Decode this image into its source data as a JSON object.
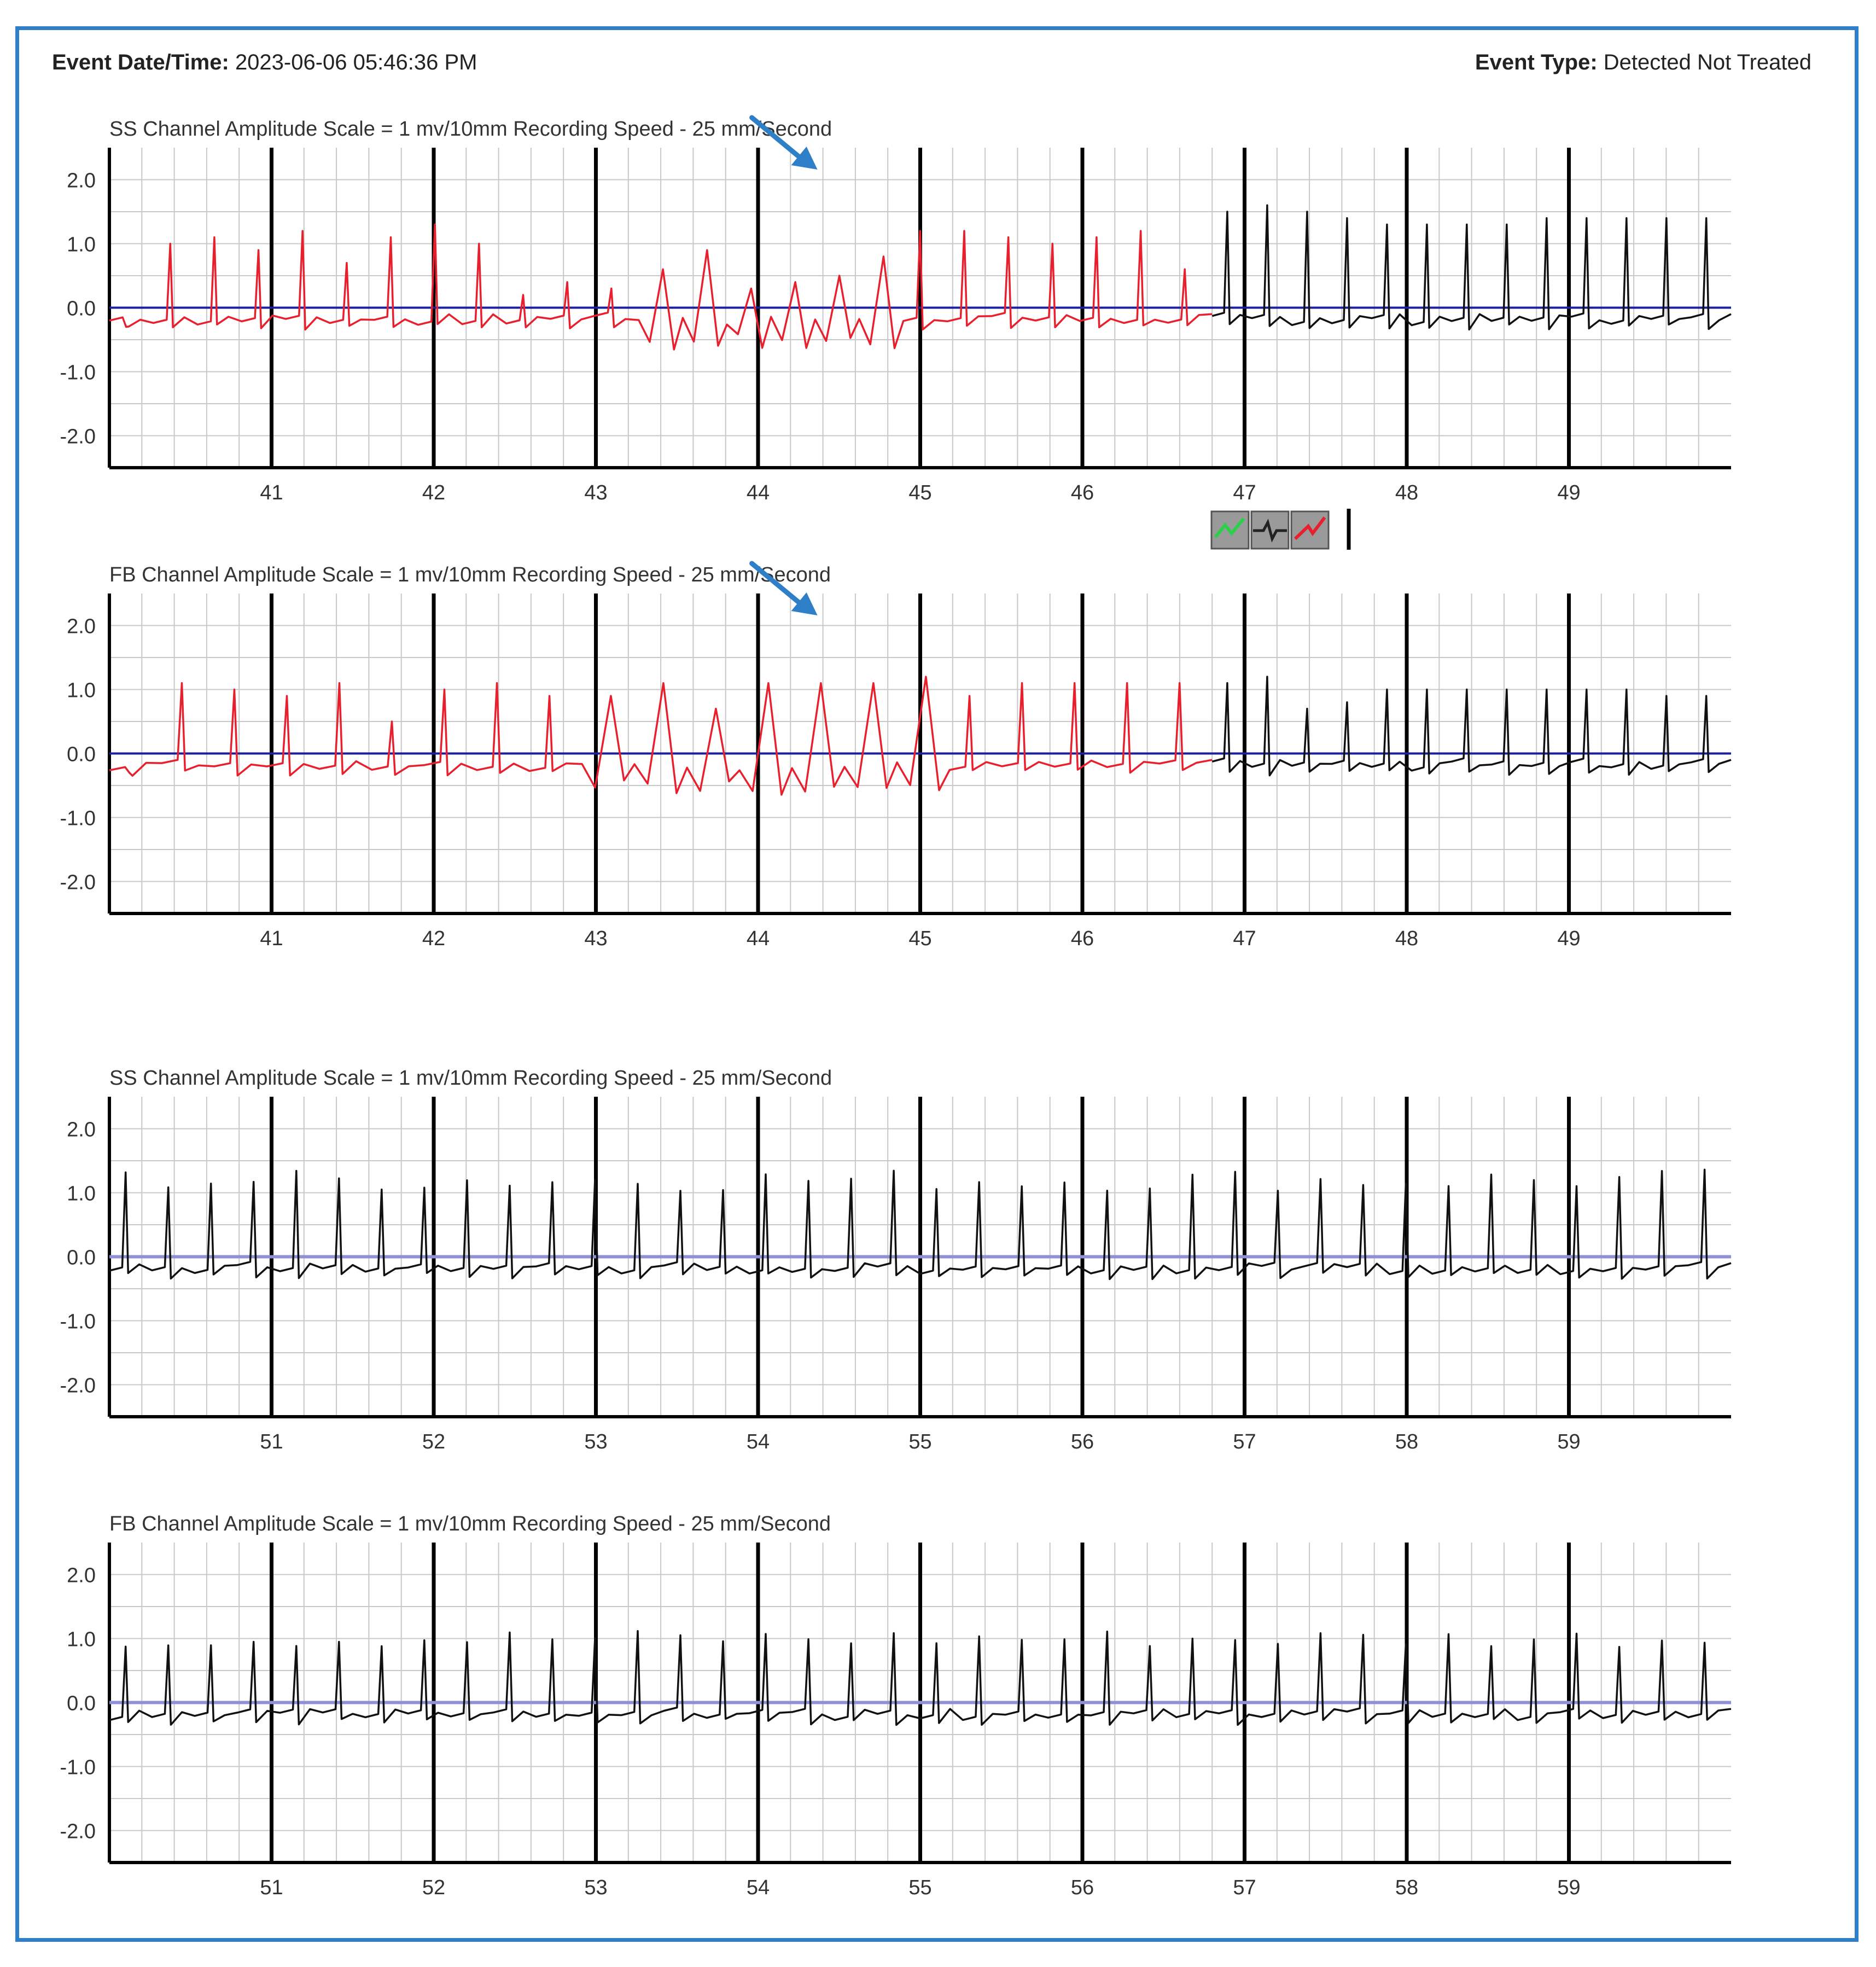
{
  "header": {
    "date_label": "Event Date/Time:",
    "date_value": "2023-06-06 05:46:36 PM",
    "type_label": "Event Type:",
    "type_value": "Detected Not Treated"
  },
  "colors": {
    "frame": "#2f7fc8",
    "treated_trace": "#e8202e",
    "normal_trace": "#111111",
    "baseline": "#1c1f9e",
    "baseline_light": "#8f90d6",
    "grid_minor": "#c8c8c8",
    "major_line": "#000000",
    "arrow": "#2f7fc8"
  },
  "marker_icons": [
    "detection-marker-icon",
    "ecg-marker-icon",
    "shock-marker-icon"
  ],
  "chart_data": [
    {
      "type": "line",
      "title": "SS Channel Amplitude Scale = 1 mv/10mm Recording Speed - 25 mm/Second",
      "ylim": [
        -2.5,
        2.5
      ],
      "yticks": [
        "2.0",
        "1.0",
        "0.0",
        "-1.0",
        "-2.0"
      ],
      "xlim": [
        40,
        50
      ],
      "xticks": [
        "41",
        "42",
        "43",
        "44",
        "45",
        "46",
        "47",
        "48",
        "49"
      ],
      "arrow_at": 44.4,
      "series": [
        {
          "color": "red",
          "x_range": [
            40,
            46.8
          ],
          "values_mv": [
            -0.3,
            1.0,
            1.1,
            0.9,
            1.2,
            0.7,
            1.1,
            1.3,
            1.0,
            0.2,
            0.4,
            0.3,
            0.6,
            0.9,
            0.3,
            0.4,
            0.5,
            0.8,
            1.2,
            1.2,
            1.1,
            1.0,
            1.1,
            1.2,
            0.6
          ]
        },
        {
          "color": "black",
          "x_range": [
            46.8,
            50
          ],
          "values_mv": [
            1.5,
            1.6,
            1.5,
            1.4,
            1.3,
            1.3,
            1.3,
            1.3,
            1.4,
            1.4,
            1.4,
            1.4,
            1.4
          ]
        }
      ]
    },
    {
      "type": "line",
      "title": "FB Channel Amplitude Scale = 1 mv/10mm Recording Speed - 25 mm/Second",
      "ylim": [
        -2.5,
        2.5
      ],
      "yticks": [
        "2.0",
        "1.0",
        "0.0",
        "-1.0",
        "-2.0"
      ],
      "xlim": [
        40,
        50
      ],
      "xticks": [
        "41",
        "42",
        "43",
        "44",
        "45",
        "46",
        "47",
        "48",
        "49"
      ],
      "arrow_at": 44.4,
      "series": [
        {
          "color": "red",
          "x_range": [
            40,
            46.8
          ],
          "values_mv": [
            -0.3,
            1.1,
            1.0,
            0.9,
            1.1,
            0.5,
            1.0,
            1.1,
            0.9,
            0.9,
            1.1,
            0.7,
            1.1,
            1.1,
            1.1,
            1.2,
            0.9,
            1.1,
            1.1,
            1.1,
            1.1
          ]
        },
        {
          "color": "black",
          "x_range": [
            46.8,
            50
          ],
          "values_mv": [
            1.1,
            1.2,
            0.7,
            0.8,
            1.0,
            1.0,
            1.0,
            1.0,
            1.0,
            1.0,
            1.0,
            0.9,
            0.9
          ]
        }
      ]
    },
    {
      "type": "line",
      "title": "SS Channel Amplitude Scale = 1 mv/10mm Recording Speed - 25 mm/Second",
      "ylim": [
        -2.5,
        2.5
      ],
      "yticks": [
        "2.0",
        "1.0",
        "0.0",
        "-1.0",
        "-2.0"
      ],
      "xlim": [
        50,
        60
      ],
      "xticks": [
        "51",
        "52",
        "53",
        "54",
        "55",
        "56",
        "57",
        "58",
        "59"
      ],
      "series": [
        {
          "color": "black",
          "x_range": [
            50,
            60
          ],
          "beat_count": 38,
          "peak_mv": 1.2
        }
      ]
    },
    {
      "type": "line",
      "title": "FB Channel Amplitude Scale = 1 mv/10mm Recording Speed - 25 mm/Second",
      "ylim": [
        -2.5,
        2.5
      ],
      "yticks": [
        "2.0",
        "1.0",
        "0.0",
        "-1.0",
        "-2.0"
      ],
      "xlim": [
        50,
        60
      ],
      "xticks": [
        "51",
        "52",
        "53",
        "54",
        "55",
        "56",
        "57",
        "58",
        "59"
      ],
      "series": [
        {
          "color": "black",
          "x_range": [
            50,
            60
          ],
          "beat_count": 38,
          "peak_mv": 1.0
        }
      ]
    }
  ]
}
